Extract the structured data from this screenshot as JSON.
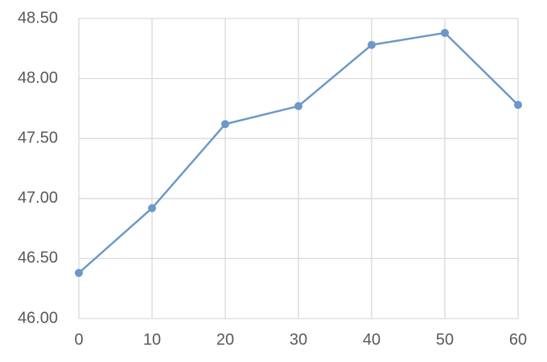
{
  "chart_data": {
    "type": "line",
    "x": [
      0,
      10,
      20,
      30,
      40,
      50,
      60
    ],
    "series": [
      {
        "color": "#6b98c9",
        "values": [
          46.38,
          46.92,
          47.62,
          47.77,
          48.28,
          48.38,
          47.78
        ]
      }
    ],
    "xlim": [
      0,
      60
    ],
    "xticks": [
      0,
      10,
      20,
      30,
      40,
      50,
      60
    ],
    "ylim": [
      46,
      48.5
    ],
    "yticks": [
      {
        "value": 46,
        "label": "46.00"
      },
      {
        "value": 46.5,
        "label": "46.50"
      },
      {
        "value": 47,
        "label": "47.00"
      },
      {
        "value": 47.5,
        "label": "47.50"
      },
      {
        "value": 48,
        "label": "48.00"
      },
      {
        "value": 48.5,
        "label": "48.50"
      }
    ],
    "grid": true
  }
}
